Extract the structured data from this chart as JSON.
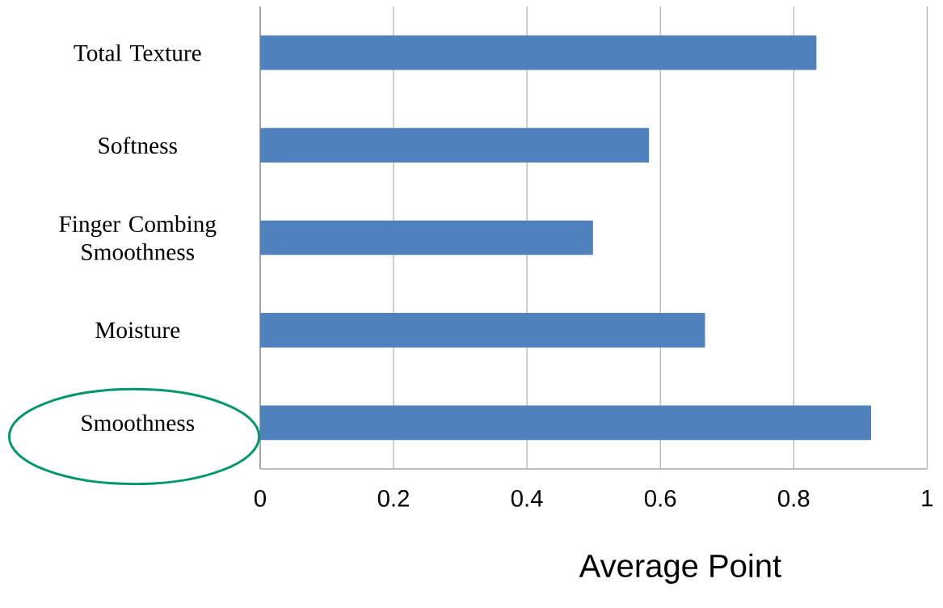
{
  "chart_data": {
    "type": "bar",
    "orientation": "horizontal",
    "xlabel": "Average Point",
    "categories": [
      "Total Texture",
      "Softness",
      "Finger Combing Smoothness",
      "Moisture",
      "Smoothness"
    ],
    "values": [
      0.834,
      0.583,
      0.499,
      0.667,
      0.916
    ],
    "color": "#4f81bd",
    "xlim": [
      0,
      1
    ],
    "xticks": [
      0,
      0.2,
      0.4,
      0.6,
      0.8,
      1
    ],
    "grid": "x"
  }
}
